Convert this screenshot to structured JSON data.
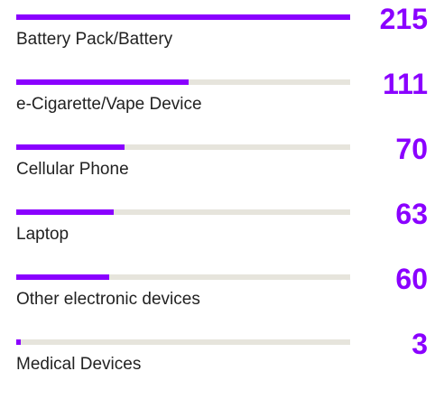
{
  "colors": {
    "accent": "#8a00ff",
    "track": "#e6e4dc",
    "label": "#222222"
  },
  "chart_data": {
    "type": "bar",
    "orientation": "horizontal",
    "categories": [
      "Battery Pack/Battery",
      "e-Cigarette/Vape Device",
      "Cellular Phone",
      "Laptop",
      "Other electronic devices",
      "Medical Devices"
    ],
    "values": [
      215,
      111,
      70,
      63,
      60,
      3
    ],
    "xlim": [
      0,
      215
    ],
    "grid": false,
    "legend": "none"
  }
}
